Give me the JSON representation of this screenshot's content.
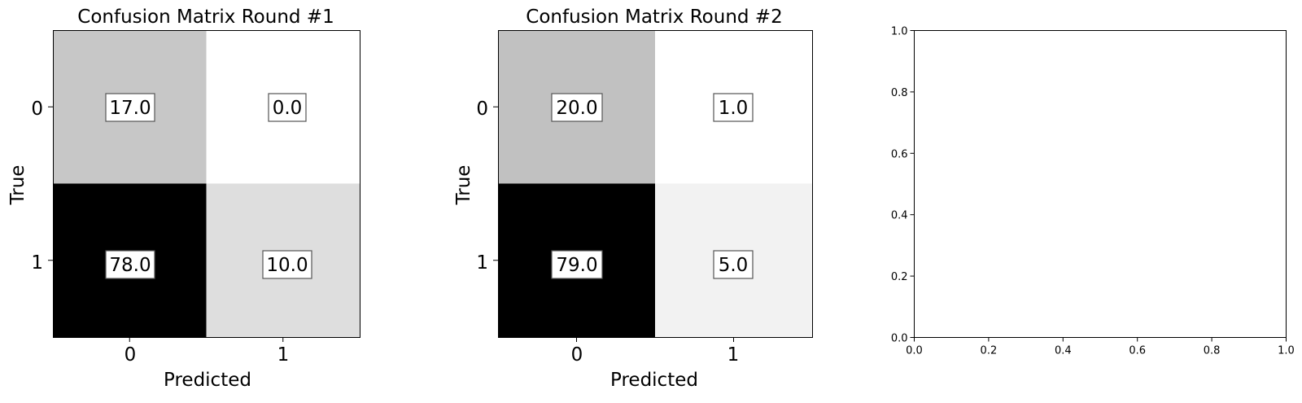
{
  "chart_data": [
    {
      "type": "heatmap",
      "title": "Confusion Matrix Round #1",
      "xlabel": "Predicted",
      "ylabel": "True",
      "x_categories": [
        "0",
        "1"
      ],
      "y_categories": [
        "0",
        "1"
      ],
      "values": [
        [
          17.0,
          0.0
        ],
        [
          78.0,
          10.0
        ]
      ],
      "cell_labels": [
        [
          "17.0",
          "0.0"
        ],
        [
          "78.0",
          "10.0"
        ]
      ],
      "colormap": "gray_r",
      "vmin": 0.0,
      "vmax": 78.0
    },
    {
      "type": "heatmap",
      "title": "Confusion Matrix Round #2",
      "xlabel": "Predicted",
      "ylabel": "True",
      "x_categories": [
        "0",
        "1"
      ],
      "y_categories": [
        "0",
        "1"
      ],
      "values": [
        [
          20.0,
          1.0
        ],
        [
          79.0,
          5.0
        ]
      ],
      "cell_labels": [
        [
          "20.0",
          "1.0"
        ],
        [
          "79.0",
          "5.0"
        ]
      ],
      "colormap": "gray_r",
      "vmin": 1.0,
      "vmax": 79.0
    },
    {
      "type": "scatter",
      "title": "",
      "xlabel": "",
      "ylabel": "",
      "xlim": [
        0.0,
        1.0
      ],
      "ylim": [
        0.0,
        1.0
      ],
      "x_ticks": [
        "0.0",
        "0.2",
        "0.4",
        "0.6",
        "0.8",
        "1.0"
      ],
      "y_ticks": [
        "0.0",
        "0.2",
        "0.4",
        "0.6",
        "0.8",
        "1.0"
      ],
      "series": []
    }
  ]
}
